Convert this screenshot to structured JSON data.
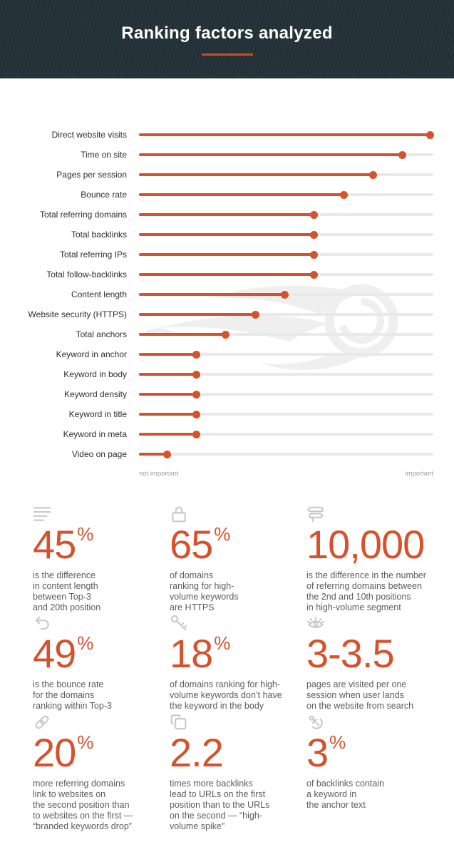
{
  "header": {
    "title": "Ranking factors analyzed",
    "bg_color": "#222f36",
    "underline_color": "#c7502a"
  },
  "chart_data": {
    "type": "lollipop",
    "title": "Ranking factors analyzed",
    "categories": [
      "Direct website visits",
      "Time on site",
      "Pages per session",
      "Bounce rate",
      "Total referring domains",
      "Total backlinks",
      "Total referring IPs",
      "Total follow-backlinks",
      "Content length",
      "Website security (HTTPS)",
      "Total anchors",
      "Keyword in anchor",
      "Keyword in body",
      "Keyword density",
      "Keyword in title",
      "Keyword in meta",
      "Video on page"
    ],
    "values": [
      99,
      89.5,
      79.5,
      69.5,
      59.5,
      59.5,
      59.5,
      59.5,
      49.5,
      39.5,
      29.5,
      19.5,
      19.5,
      19.5,
      19.5,
      19.5,
      9.5
    ],
    "value_scale": "percent of axis from 'not important' (0) to 'important' (100)",
    "axis_min_label": "not important",
    "axis_max_label": "important",
    "xlim": [
      0,
      100
    ],
    "grid": false,
    "legend": false,
    "accent_color": "#d5522d",
    "track_color": "#e9e9e9",
    "watermark": "semrush-logo"
  },
  "stats": [
    {
      "icon": "text-lines-icon",
      "value": "45",
      "suffix": "%",
      "description": "is the difference\nin content length\nbetween Top-3\nand 20th position"
    },
    {
      "icon": "lock-icon",
      "value": "65",
      "suffix": "%",
      "description": "of domains\nranking for high-\nvolume keywords\nare HTTPS"
    },
    {
      "icon": "signpost-icon",
      "value": "10,000",
      "suffix": "",
      "description": "is the difference in the number\nof referring domains between\nthe 2nd and 10th positions\nin high-volume segment"
    },
    {
      "icon": "undo-arrow-icon",
      "value": "49",
      "suffix": "%",
      "description": "is the bounce rate\nfor the domains\nranking within Top-3"
    },
    {
      "icon": "key-icon",
      "value": "18",
      "suffix": "%",
      "description": "of domains ranking for high-\nvolume keywords don’t have\nthe keyword in the body"
    },
    {
      "icon": "eye-icon",
      "value": "3-3.5",
      "suffix": "",
      "description": "pages are visited per one\nsession when user lands\non the website from search"
    },
    {
      "icon": "chain-link-icon",
      "value": "20",
      "suffix": "%",
      "description": "more referring domains\nlink to websites on\nthe second position than\nto websites on the first —\n“branded keywords drop”"
    },
    {
      "icon": "copy-pages-icon",
      "value": "2.2",
      "suffix": "",
      "description": "times more backlinks\nlead to URLs on the first\nposition than to the URLs\non the second — “high-\nvolume spike”"
    },
    {
      "icon": "anchor-icon",
      "value": "3",
      "suffix": "%",
      "description": "of backlinks contain\na keyword in\nthe anchor text"
    }
  ]
}
